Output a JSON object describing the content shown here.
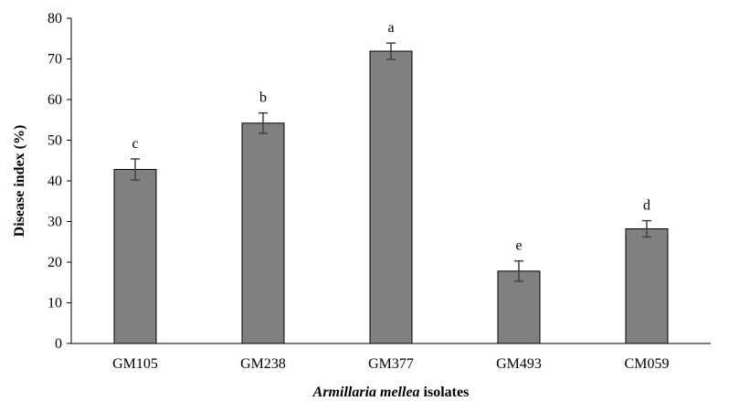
{
  "chart_data": {
    "type": "bar",
    "categories": [
      "GM105",
      "GM238",
      "GM377",
      "GM493",
      "CM059"
    ],
    "values": [
      42.8,
      54.2,
      71.9,
      17.8,
      28.2
    ],
    "errors": [
      2.6,
      2.5,
      2.0,
      2.5,
      2.0
    ],
    "significance_letters": [
      "c",
      "b",
      "a",
      "e",
      "d"
    ],
    "ylabel": "Disease index (%)",
    "xlabel_italic": "Armillaria mellea",
    "xlabel_rest": " isolates",
    "ylim": [
      0,
      80
    ],
    "yticks": [
      0,
      10,
      20,
      30,
      40,
      50,
      60,
      70,
      80
    ],
    "grid": false,
    "colors": {
      "bar": "#808080",
      "bar_stroke": "#000000",
      "error_bar": "#404040",
      "axis": "#000000"
    }
  }
}
